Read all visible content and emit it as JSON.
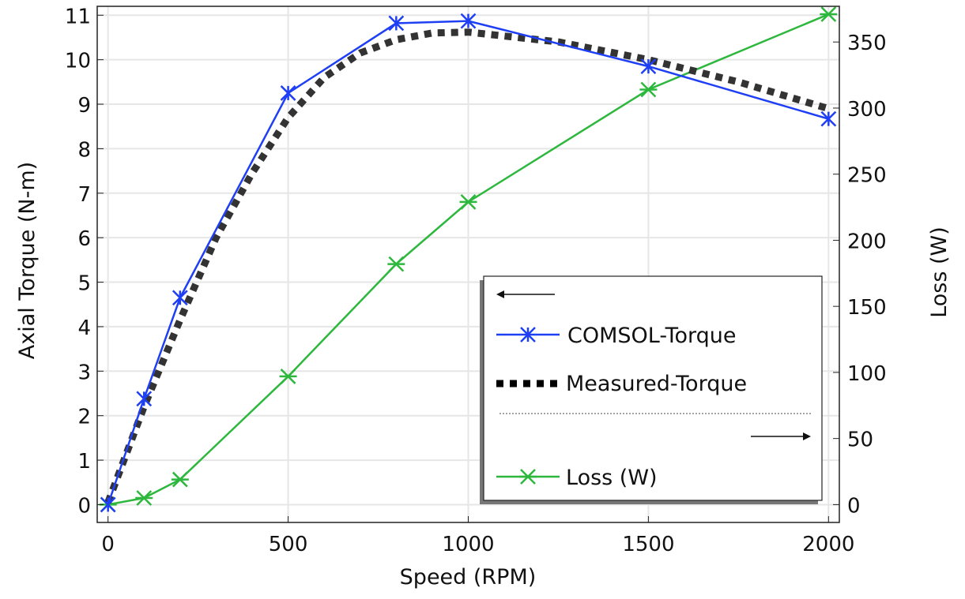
{
  "chart_data": {
    "type": "line",
    "xlabel": "Speed (RPM)",
    "ylabel": "Axial Torque (N-m)",
    "y2label": "Loss (W)",
    "xlim": [
      -30,
      2030
    ],
    "ylim": [
      -0.4,
      11.2
    ],
    "y2lim": [
      -13.5,
      377
    ],
    "xticks": [
      0,
      500,
      1000,
      1500,
      2000
    ],
    "yticks": [
      0,
      1,
      2,
      3,
      4,
      5,
      6,
      7,
      8,
      9,
      10,
      11
    ],
    "y2ticks": [
      0,
      50,
      100,
      150,
      200,
      250,
      300,
      350
    ],
    "grid": true,
    "legend_placement": "bottom-right",
    "legend": {
      "left_arrow": "←",
      "right_arrow": "→"
    },
    "series": [
      {
        "name": "COMSOL-Torque",
        "axis": "left",
        "color": "#1f3ff5",
        "style": "solid",
        "marker": "x",
        "x": [
          0,
          100,
          200,
          500,
          800,
          1000,
          1500,
          2000
        ],
        "y": [
          0.0,
          2.38,
          4.65,
          9.25,
          10.82,
          10.87,
          9.85,
          8.67
        ]
      },
      {
        "name": "Measured-Torque",
        "axis": "left",
        "color": "#333333",
        "style": "dotted-thick",
        "marker": "none",
        "x": [
          0,
          100,
          200,
          300,
          400,
          500,
          600,
          700,
          800,
          900,
          1000,
          1250,
          1500,
          1750,
          2000
        ],
        "y": [
          0.05,
          2.2,
          4.15,
          6.0,
          7.45,
          8.7,
          9.6,
          10.15,
          10.45,
          10.6,
          10.62,
          10.4,
          10.0,
          9.5,
          8.9
        ]
      },
      {
        "name": "Loss (W)",
        "axis": "right",
        "color": "#2db83d",
        "style": "solid",
        "marker": "asterisk",
        "x": [
          0,
          100,
          200,
          500,
          800,
          1000,
          1500,
          2000
        ],
        "y": [
          0,
          5,
          19,
          97,
          182,
          229,
          314,
          371
        ]
      }
    ]
  }
}
